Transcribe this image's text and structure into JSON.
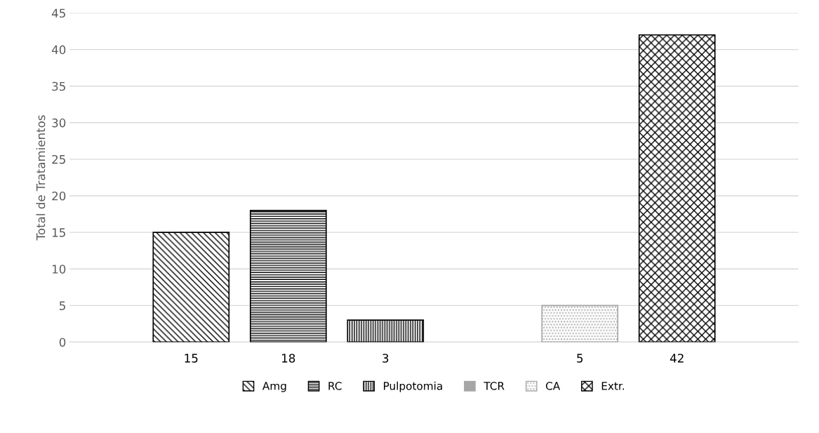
{
  "chart_data": {
    "type": "bar",
    "ylabel": "Total de Tratamientos",
    "categories": [
      null
    ],
    "series": [
      {
        "name": "Amg",
        "color": "#000000",
        "values": [
          15
        ]
      },
      {
        "name": "RC",
        "color": "#000000",
        "values": [
          18
        ]
      },
      {
        "name": "Pulpotomia",
        "color": "#000000",
        "values": [
          3
        ]
      },
      {
        "name": "TCR",
        "color": "#a6a6a6",
        "values": [
          null
        ]
      },
      {
        "name": "CA",
        "color": "#a6a6a6",
        "values": [
          5
        ]
      },
      {
        "name": "Extr.",
        "color": "#000000",
        "values": [
          42
        ]
      }
    ],
    "ylim": [
      0,
      45
    ],
    "yticks": [
      0,
      5,
      10,
      15,
      20,
      25,
      30,
      35,
      40,
      45
    ],
    "grid": "y",
    "legend": "bottom",
    "data_labels": true
  }
}
